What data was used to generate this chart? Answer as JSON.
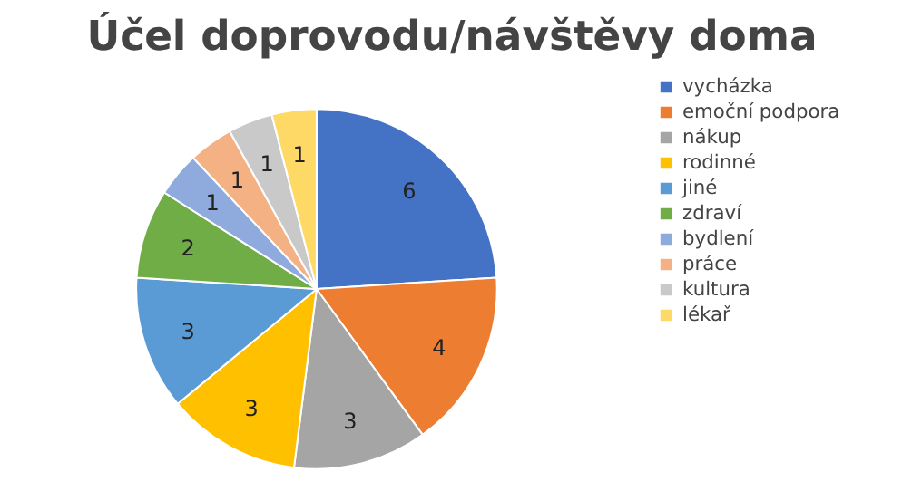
{
  "chart_data": {
    "type": "pie",
    "title": "Účel doprovodu/návštěvy doma",
    "categories": [
      "vycházka",
      "emoční podpora",
      "nákup",
      "rodinné",
      "jiné",
      "zdraví",
      "bydlení",
      "práce",
      "kultura",
      "lékař"
    ],
    "values": [
      6,
      4,
      3,
      3,
      3,
      2,
      1,
      1,
      1,
      1
    ],
    "colors": [
      "#4472c4",
      "#ed7d31",
      "#a5a5a5",
      "#ffc000",
      "#5b9bd5",
      "#70ad47",
      "#8faadc",
      "#f4b183",
      "#c9c9c9",
      "#ffd966"
    ],
    "data_labels": true,
    "legend": "right"
  }
}
